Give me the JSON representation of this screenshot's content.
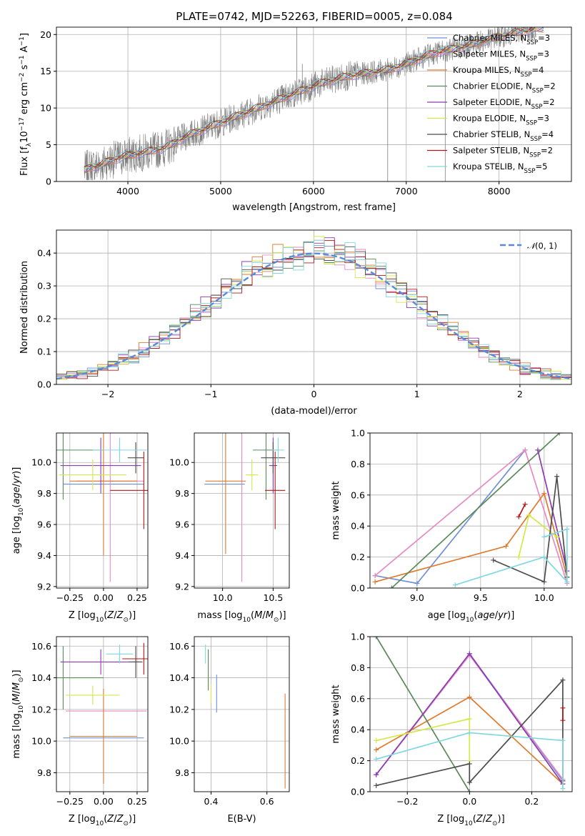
{
  "figure_title": "PLATE=0742, MJD=52263, FIBERID=0005, z=0.084",
  "colors": {
    "Chabrier MILES": "#6e8fd8",
    "Salpeter MILES": "#e58ac3",
    "Kroupa MILES": "#e07b2e",
    "Chabrier ELODIE": "#5a8a5a",
    "Salpeter ELODIE": "#8f3ab0",
    "Kroupa ELODIE": "#d3e84a",
    "Chabrier STELIB": "#4d4d4d",
    "Salpeter STELIB": "#b01818",
    "Kroupa STELIB": "#7fd8e0",
    "data": "#808080",
    "normal": "#5a8ad6"
  },
  "chart_data": [
    {
      "type": "line",
      "id": "spectrum",
      "title": "PLATE=0742, MJD=52263, FIBERID=0005, z=0.084",
      "xlabel": "wavelength [Angstrom, rest frame]",
      "ylabel": "Flux [f_λ 10^-17 erg cm^-2 s^-1 A^-1]",
      "xlim": [
        3230,
        8780
      ],
      "ylim": [
        0,
        21
      ],
      "xticks": [
        4000,
        5000,
        6000,
        7000,
        8000
      ],
      "yticks": [
        0,
        5,
        10,
        15,
        20
      ],
      "legend_position": "right",
      "data_x": [
        3530,
        3600,
        3700,
        3800,
        3900,
        4000,
        4100,
        4200,
        4300,
        4400,
        4500,
        4600,
        4700,
        4800,
        4900,
        5000,
        5100,
        5200,
        5300,
        5400,
        5500,
        5600,
        5700,
        5800,
        5900,
        6000,
        6100,
        6200,
        6300,
        6400,
        6500,
        6600,
        6700,
        6800,
        6900,
        7000,
        7100,
        7200,
        7300,
        7400,
        7500,
        7600,
        7700,
        7800,
        7900,
        8000,
        8100,
        8200,
        8300,
        8400
      ],
      "data_y": [
        1.5,
        2.0,
        2.2,
        2.8,
        3.2,
        3.5,
        3.8,
        4.0,
        4.3,
        4.6,
        5.2,
        6.0,
        6.5,
        7.0,
        7.5,
        8.0,
        8.5,
        9.0,
        9.5,
        10.0,
        10.5,
        11.0,
        11.5,
        12.0,
        12.5,
        13.0,
        13.4,
        13.8,
        14.1,
        14.4,
        14.6,
        14.8,
        15.0,
        15.2,
        15.6,
        16.0,
        16.5,
        17.0,
        17.4,
        17.8,
        18.0,
        18.3,
        18.6,
        19.0,
        19.3,
        19.7,
        20.0,
        20.3,
        20.5,
        20.8
      ],
      "series": [
        {
          "name": "Chabrier MILES, N_SSP=3",
          "label": "Chabrier MILES, N",
          "sub": "SSP",
          "n": "=3"
        },
        {
          "name": "Salpeter MILES, N_SSP=3",
          "label": "Salpeter MILES, N",
          "sub": "SSP",
          "n": "=3"
        },
        {
          "name": "Kroupa MILES, N_SSP=4",
          "label": "Kroupa MILES, N",
          "sub": "SSP",
          "n": "=4"
        },
        {
          "name": "Chabrier ELODIE, N_SSP=2",
          "label": "Chabrier ELODIE, N",
          "sub": "SSP",
          "n": "=2"
        },
        {
          "name": "Salpeter ELODIE, N_SSP=2",
          "label": "Salpeter ELODIE, N",
          "sub": "SSP",
          "n": "=2"
        },
        {
          "name": "Kroupa ELODIE, N_SSP=3",
          "label": "Kroupa ELODIE, N",
          "sub": "SSP",
          "n": "=3"
        },
        {
          "name": "Chabrier STELIB, N_SSP=4",
          "label": "Chabrier STELIB, N",
          "sub": "SSP",
          "n": "=4"
        },
        {
          "name": "Salpeter STELIB, N_SSP=2",
          "label": "Salpeter STELIB, N",
          "sub": "SSP",
          "n": "=2"
        },
        {
          "name": "Kroupa STELIB, N_SSP=5",
          "label": "Kroupa STELIB, N",
          "sub": "SSP",
          "n": "=5"
        }
      ]
    },
    {
      "type": "line",
      "id": "residuals",
      "xlabel": "(data-model)/error",
      "ylabel": "Normed distribution",
      "xlim": [
        -2.5,
        2.5
      ],
      "ylim": [
        0,
        0.47
      ],
      "xticks": [
        -2,
        -1,
        0,
        1,
        2
      ],
      "yticks": [
        0.0,
        0.1,
        0.2,
        0.3,
        0.4
      ],
      "legend": "N(0, 1)",
      "legend_position": "top-right"
    },
    {
      "type": "scatter",
      "id": "age_vs_Z",
      "xlabel": "Z [log10(Z/Z⊙)]",
      "ylabel": "age [log10(age/yr)]",
      "xlim": [
        -0.35,
        0.33
      ],
      "ylim": [
        9.19,
        10.19
      ],
      "xticks": [
        -0.25,
        0.0,
        0.25
      ],
      "xticklabels": [
        "−0.25",
        "0.00",
        "0.25"
      ],
      "yticks": [
        9.2,
        9.4,
        9.6,
        9.8,
        10.0
      ],
      "points": [
        {
          "series": "Chabrier MILES",
          "x": 0.0,
          "y": 9.86,
          "xerr": 0.3,
          "yerr": 0.0
        },
        {
          "series": "Salpeter MILES",
          "x": 0.05,
          "y": 9.88,
          "xerr": 0.25,
          "yerr": 0.65
        },
        {
          "series": "Kroupa MILES",
          "x": 0.0,
          "y": 9.88,
          "xerr": 0.25,
          "yerr": 0.48
        },
        {
          "series": "Chabrier ELODIE",
          "x": -0.3,
          "y": 10.08,
          "xerr": 0.3,
          "yerr": 0.32
        },
        {
          "series": "Salpeter ELODIE",
          "x": -0.02,
          "y": 9.98,
          "xerr": 0.3,
          "yerr": 0.18
        },
        {
          "series": "Kroupa ELODIE",
          "x": -0.08,
          "y": 9.92,
          "xerr": 0.25,
          "yerr": 0.1
        },
        {
          "series": "Chabrier STELIB",
          "x": 0.24,
          "y": 10.03,
          "xerr": 0.06,
          "yerr": 0.1
        },
        {
          "series": "Salpeter STELIB",
          "x": 0.3,
          "y": 9.82,
          "xerr": 0.25,
          "yerr": 0.25
        },
        {
          "series": "Kroupa STELIB",
          "x": 0.12,
          "y": 10.08,
          "xerr": 0.2,
          "yerr": 0.08
        }
      ]
    },
    {
      "type": "scatter",
      "id": "age_vs_mass",
      "xlabel": "mass [log10(M/M⊙)]",
      "xlim": [
        9.72,
        10.66
      ],
      "ylim": [
        9.19,
        10.19
      ],
      "xticks": [
        10.0,
        10.5
      ],
      "yticks": [
        9.2,
        9.4,
        9.6,
        9.8,
        10.0
      ],
      "points": [
        {
          "series": "Chabrier MILES",
          "x": 10.02,
          "y": 9.86,
          "xerr": 0.2,
          "yerr": 0.0
        },
        {
          "series": "Salpeter MILES",
          "x": 10.19,
          "y": 9.88,
          "xerr": 0.0,
          "yerr": 0.65
        },
        {
          "series": "Kroupa MILES",
          "x": 10.03,
          "y": 9.88,
          "xerr": 0.2,
          "yerr": 0.47
        },
        {
          "series": "Chabrier ELODIE",
          "x": 10.43,
          "y": 10.08,
          "xerr": 0.13,
          "yerr": 0.32
        },
        {
          "series": "Salpeter ELODIE",
          "x": 10.5,
          "y": 9.98,
          "xerr": 0.04,
          "yerr": 0.18
        },
        {
          "series": "Kroupa ELODIE",
          "x": 10.29,
          "y": 9.92,
          "xerr": 0.06,
          "yerr": 0.1
        },
        {
          "series": "Chabrier STELIB",
          "x": 10.5,
          "y": 10.03,
          "xerr": 0.12,
          "yerr": 0.1
        },
        {
          "series": "Salpeter STELIB",
          "x": 10.52,
          "y": 9.82,
          "xerr": 0.1,
          "yerr": 0.25
        },
        {
          "series": "Kroupa STELIB",
          "x": 10.55,
          "y": 10.08,
          "xerr": 0.06,
          "yerr": 0.08
        }
      ]
    },
    {
      "type": "line",
      "id": "weight_vs_age",
      "xlabel": "age [log10(age/yr)]",
      "ylabel": "mass weight",
      "xlim": [
        8.63,
        10.22
      ],
      "ylim": [
        0.0,
        1.0
      ],
      "xticks": [
        9.0,
        9.5,
        10.0
      ],
      "yticks": [
        0.0,
        0.2,
        0.4,
        0.6,
        0.8,
        1.0
      ],
      "series": [
        {
          "name": "Chabrier MILES",
          "x": [
            8.67,
            9.0,
            9.85
          ],
          "y": [
            0.08,
            0.03,
            0.89
          ]
        },
        {
          "name": "Salpeter MILES",
          "x": [
            8.67,
            9.85,
            10.18
          ],
          "y": [
            0.08,
            0.89,
            0.03
          ]
        },
        {
          "name": "Kroupa MILES",
          "x": [
            8.67,
            9.7,
            10.0,
            10.18
          ],
          "y": [
            0.04,
            0.27,
            0.61,
            0.07
          ]
        },
        {
          "name": "Chabrier ELODIE",
          "x": [
            8.8,
            10.12
          ],
          "y": [
            0.0,
            1.0
          ]
        },
        {
          "name": "Salpeter ELODIE",
          "x": [
            9.95,
            10.18
          ],
          "y": [
            0.89,
            0.11
          ]
        },
        {
          "name": "Kroupa ELODIE",
          "x": [
            9.8,
            9.88,
            10.1
          ],
          "y": [
            0.2,
            0.47,
            0.33
          ]
        },
        {
          "name": "Chabrier STELIB",
          "x": [
            9.6,
            10.0,
            10.1,
            10.18
          ],
          "y": [
            0.18,
            0.04,
            0.72,
            0.07
          ]
        },
        {
          "name": "Salpeter STELIB",
          "x": [
            9.8,
            9.85
          ],
          "y": [
            0.46,
            0.54
          ]
        },
        {
          "name": "Kroupa STELIB",
          "x": [
            9.3,
            10.0,
            10.18,
            10.18,
            10.0
          ],
          "y": [
            0.02,
            0.2,
            0.04,
            0.38,
            0.33
          ]
        }
      ]
    },
    {
      "type": "scatter",
      "id": "mass_vs_Z",
      "xlabel": "Z [log10(Z/Z⊙)]",
      "ylabel": "mass [log10(M/M⊙)]",
      "xlim": [
        -0.35,
        0.33
      ],
      "ylim": [
        9.68,
        10.66
      ],
      "xticks": [
        -0.25,
        0.0,
        0.25
      ],
      "xticklabels": [
        "−0.25",
        "0.00",
        "0.25"
      ],
      "yticks": [
        9.8,
        10.0,
        10.2,
        10.4,
        10.6
      ],
      "points": [
        {
          "series": "Chabrier MILES",
          "x": 0.0,
          "y": 10.02,
          "xerr": 0.3,
          "yerr": 0.0
        },
        {
          "series": "Salpeter MILES",
          "x": 0.02,
          "y": 10.19,
          "xerr": 0.3,
          "yerr": 0.0
        },
        {
          "series": "Kroupa MILES",
          "x": 0.0,
          "y": 10.03,
          "xerr": 0.25,
          "yerr": 0.3
        },
        {
          "series": "Chabrier ELODIE",
          "x": -0.3,
          "y": 10.4,
          "xerr": 0.3,
          "yerr": 0.2
        },
        {
          "series": "Salpeter ELODIE",
          "x": -0.02,
          "y": 10.5,
          "xerr": 0.3,
          "yerr": 0.08
        },
        {
          "series": "Kroupa ELODIE",
          "x": -0.08,
          "y": 10.29,
          "xerr": 0.2,
          "yerr": 0.06
        },
        {
          "series": "Chabrier STELIB",
          "x": 0.24,
          "y": 10.5,
          "xerr": 0.05,
          "yerr": 0.1
        },
        {
          "series": "Salpeter STELIB",
          "x": 0.3,
          "y": 10.52,
          "xerr": 0.16,
          "yerr": 0.1
        },
        {
          "series": "Kroupa STELIB",
          "x": 0.12,
          "y": 10.55,
          "xerr": 0.1,
          "yerr": 0.06
        }
      ]
    },
    {
      "type": "scatter",
      "id": "mass_vs_ebv",
      "xlabel": "E(B-V)",
      "xlim": [
        0.34,
        0.68
      ],
      "ylim": [
        9.68,
        10.66
      ],
      "xticks": [
        0.4,
        0.6
      ],
      "yticks": [
        9.8,
        10.0,
        10.2,
        10.4,
        10.6
      ],
      "points": [
        {
          "series": "Kroupa STELIB",
          "x": 0.38,
          "y": 10.55,
          "yerr": 0.06
        },
        {
          "series": "Chabrier ELODIE",
          "x": 0.39,
          "y": 10.45,
          "yerr": 0.13
        },
        {
          "series": "Kroupa ELODIE",
          "x": 0.4,
          "y": 10.3,
          "yerr": 0.06
        },
        {
          "series": "Chabrier MILES",
          "x": 0.42,
          "y": 10.3,
          "yerr": 0.12
        },
        {
          "series": "Kroupa MILES",
          "x": 0.665,
          "y": 10.0,
          "yerr": 0.3
        }
      ]
    },
    {
      "type": "line",
      "id": "weight_vs_Z",
      "xlabel": "Z [log10(Z/Z⊙)]",
      "ylabel": "mass weight",
      "xlim": [
        -0.32,
        0.33
      ],
      "ylim": [
        0.0,
        1.0
      ],
      "xticks": [
        -0.2,
        0.0,
        0.2
      ],
      "xticklabels": [
        "−0.2",
        "0.0",
        "0.2"
      ],
      "yticks": [
        0.0,
        0.2,
        0.4,
        0.6,
        0.8,
        1.0
      ],
      "series": [
        {
          "name": "Chabrier MILES",
          "x": [
            -0.3,
            0.0,
            0.3
          ],
          "y": [
            0.11,
            0.89,
            0.07
          ]
        },
        {
          "name": "Salpeter MILES",
          "x": [
            -0.3,
            0.0,
            0.3
          ],
          "y": [
            0.11,
            0.88,
            0.08
          ]
        },
        {
          "name": "Kroupa MILES",
          "x": [
            -0.3,
            0.0,
            0.3
          ],
          "y": [
            0.27,
            0.61,
            0.05
          ]
        },
        {
          "name": "Chabrier ELODIE",
          "x": [
            -0.3,
            0.0
          ],
          "y": [
            1.0,
            0.0
          ]
        },
        {
          "name": "Salpeter ELODIE",
          "x": [
            -0.3,
            0.0,
            0.3
          ],
          "y": [
            0.11,
            0.89,
            0.05
          ]
        },
        {
          "name": "Kroupa ELODIE",
          "x": [
            -0.3,
            0.0,
            0.0
          ],
          "y": [
            0.33,
            0.47,
            0.2
          ]
        },
        {
          "name": "Chabrier STELIB",
          "x": [
            -0.3,
            0.0,
            0.0,
            0.3,
            0.3
          ],
          "y": [
            0.04,
            0.18,
            0.06,
            0.72,
            0.07
          ]
        },
        {
          "name": "Salpeter STELIB",
          "x": [
            0.3,
            0.3
          ],
          "y": [
            0.46,
            0.54
          ]
        },
        {
          "name": "Kroupa STELIB",
          "x": [
            -0.3,
            0.0,
            0.3,
            0.3
          ],
          "y": [
            0.21,
            0.38,
            0.33,
            0.02
          ]
        }
      ]
    }
  ]
}
